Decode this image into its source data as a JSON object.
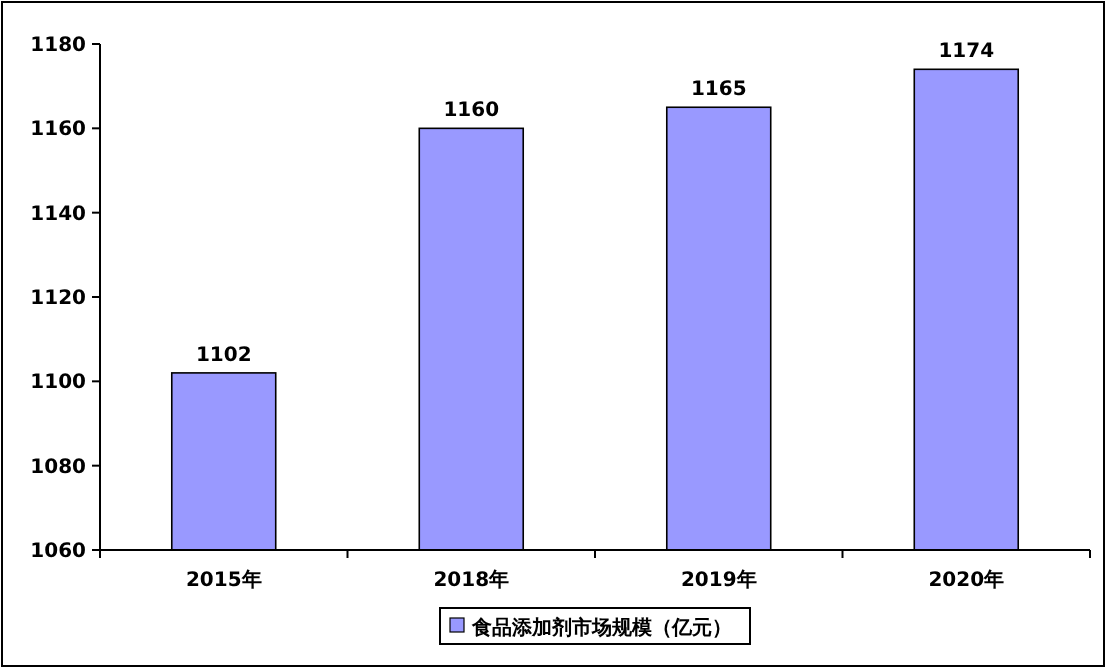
{
  "chart_data": {
    "type": "bar",
    "categories": [
      "2015年",
      "2018年",
      "2019年",
      "2020年"
    ],
    "series": [
      {
        "name": "食品添加剂市场规模（亿元）",
        "color": "#9999ff",
        "values": [
          1102,
          1160,
          1165,
          1174
        ]
      }
    ],
    "ylim": [
      1060,
      1180
    ],
    "yticks": [
      1060,
      1080,
      1100,
      1120,
      1140,
      1160,
      1180
    ],
    "data_labels": true,
    "grid": false,
    "legend": "bottom"
  }
}
